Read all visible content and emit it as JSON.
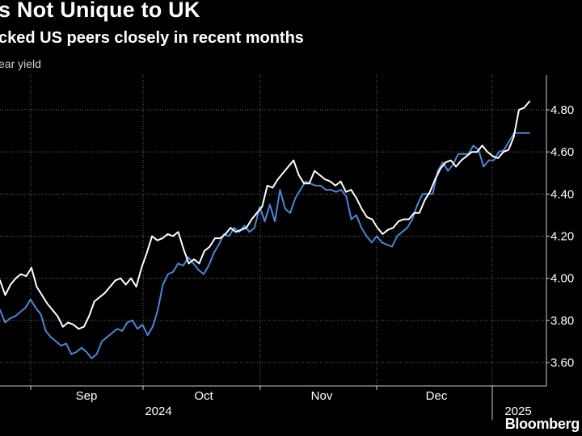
{
  "header": {
    "title": "s Not Unique to UK",
    "subtitle": "cked US peers closely in recent months",
    "unit_label": "ear yield"
  },
  "footer": {
    "logo": "Bloomberg"
  },
  "colors": {
    "background": "#000000",
    "uk_series": "#ffffff",
    "us_series": "#4a86d8",
    "grid": "#666666"
  },
  "chart_data": {
    "type": "line",
    "ylim": [
      3.5,
      4.9
    ],
    "y_ticks": [
      3.6,
      3.8,
      4.0,
      4.2,
      4.4,
      4.6,
      4.8
    ],
    "y_tick_labels": [
      "3.60",
      "3.80",
      "4.00",
      "4.20",
      "4.40",
      "4.60",
      "4.80"
    ],
    "x_month_labels": [
      "Sep",
      "Oct",
      "Nov",
      "Dec"
    ],
    "x_year_labels": [
      "2024",
      "2025"
    ],
    "grid": true,
    "series": [
      {
        "color": "#ffffff",
        "values": [
          3.99,
          3.92,
          3.97,
          4.0,
          4.02,
          4.01,
          4.05,
          3.96,
          3.92,
          3.88,
          3.85,
          3.82,
          3.77,
          3.79,
          3.78,
          3.76,
          3.77,
          3.82,
          3.89,
          3.91,
          3.93,
          3.96,
          3.99,
          4.0,
          3.97,
          4.0,
          3.96,
          4.05,
          4.12,
          4.2,
          4.18,
          4.19,
          4.21,
          4.2,
          4.22,
          4.14,
          4.07,
          4.09,
          4.07,
          4.13,
          4.15,
          4.19,
          4.19,
          4.21,
          4.24,
          4.22,
          4.23,
          4.24,
          4.28,
          4.31,
          4.34,
          4.44,
          4.43,
          4.47,
          4.5,
          4.53,
          4.56,
          4.49,
          4.45,
          4.45,
          4.51,
          4.49,
          4.47,
          4.46,
          4.44,
          4.46,
          4.41,
          4.42,
          4.38,
          4.33,
          4.29,
          4.28,
          4.24,
          4.21,
          4.23,
          4.24,
          4.27,
          4.28,
          4.28,
          4.31,
          4.31,
          4.37,
          4.41,
          4.47,
          4.52,
          4.55,
          4.56,
          4.53,
          4.56,
          4.58,
          4.6,
          4.6,
          4.63,
          4.6,
          4.58,
          4.57,
          4.6,
          4.61,
          4.67,
          4.8,
          4.81,
          4.84
        ]
      },
      {
        "color": "#4a86d8",
        "values": [
          3.85,
          3.79,
          3.81,
          3.82,
          3.84,
          3.86,
          3.9,
          3.86,
          3.83,
          3.75,
          3.72,
          3.7,
          3.68,
          3.69,
          3.64,
          3.65,
          3.67,
          3.65,
          3.62,
          3.64,
          3.7,
          3.72,
          3.74,
          3.76,
          3.75,
          3.79,
          3.8,
          3.76,
          3.78,
          3.73,
          3.77,
          3.85,
          3.97,
          4.02,
          4.03,
          4.07,
          4.06,
          4.1,
          4.07,
          4.04,
          4.02,
          4.06,
          4.12,
          4.16,
          4.21,
          4.2,
          4.24,
          4.22,
          4.25,
          4.22,
          4.24,
          4.34,
          4.27,
          4.35,
          4.27,
          4.42,
          4.33,
          4.31,
          4.38,
          4.42,
          4.46,
          4.45,
          4.44,
          4.44,
          4.42,
          4.42,
          4.41,
          4.42,
          4.39,
          4.28,
          4.3,
          4.24,
          4.2,
          4.17,
          4.2,
          4.17,
          4.16,
          4.15,
          4.2,
          4.22,
          4.24,
          4.28,
          4.35,
          4.4,
          4.4,
          4.4,
          4.51,
          4.55,
          4.51,
          4.54,
          4.59,
          4.59,
          4.59,
          4.63,
          4.61,
          4.53,
          4.56,
          4.56,
          4.6,
          4.61,
          4.65,
          4.69,
          4.69,
          4.69,
          4.69
        ]
      }
    ]
  }
}
